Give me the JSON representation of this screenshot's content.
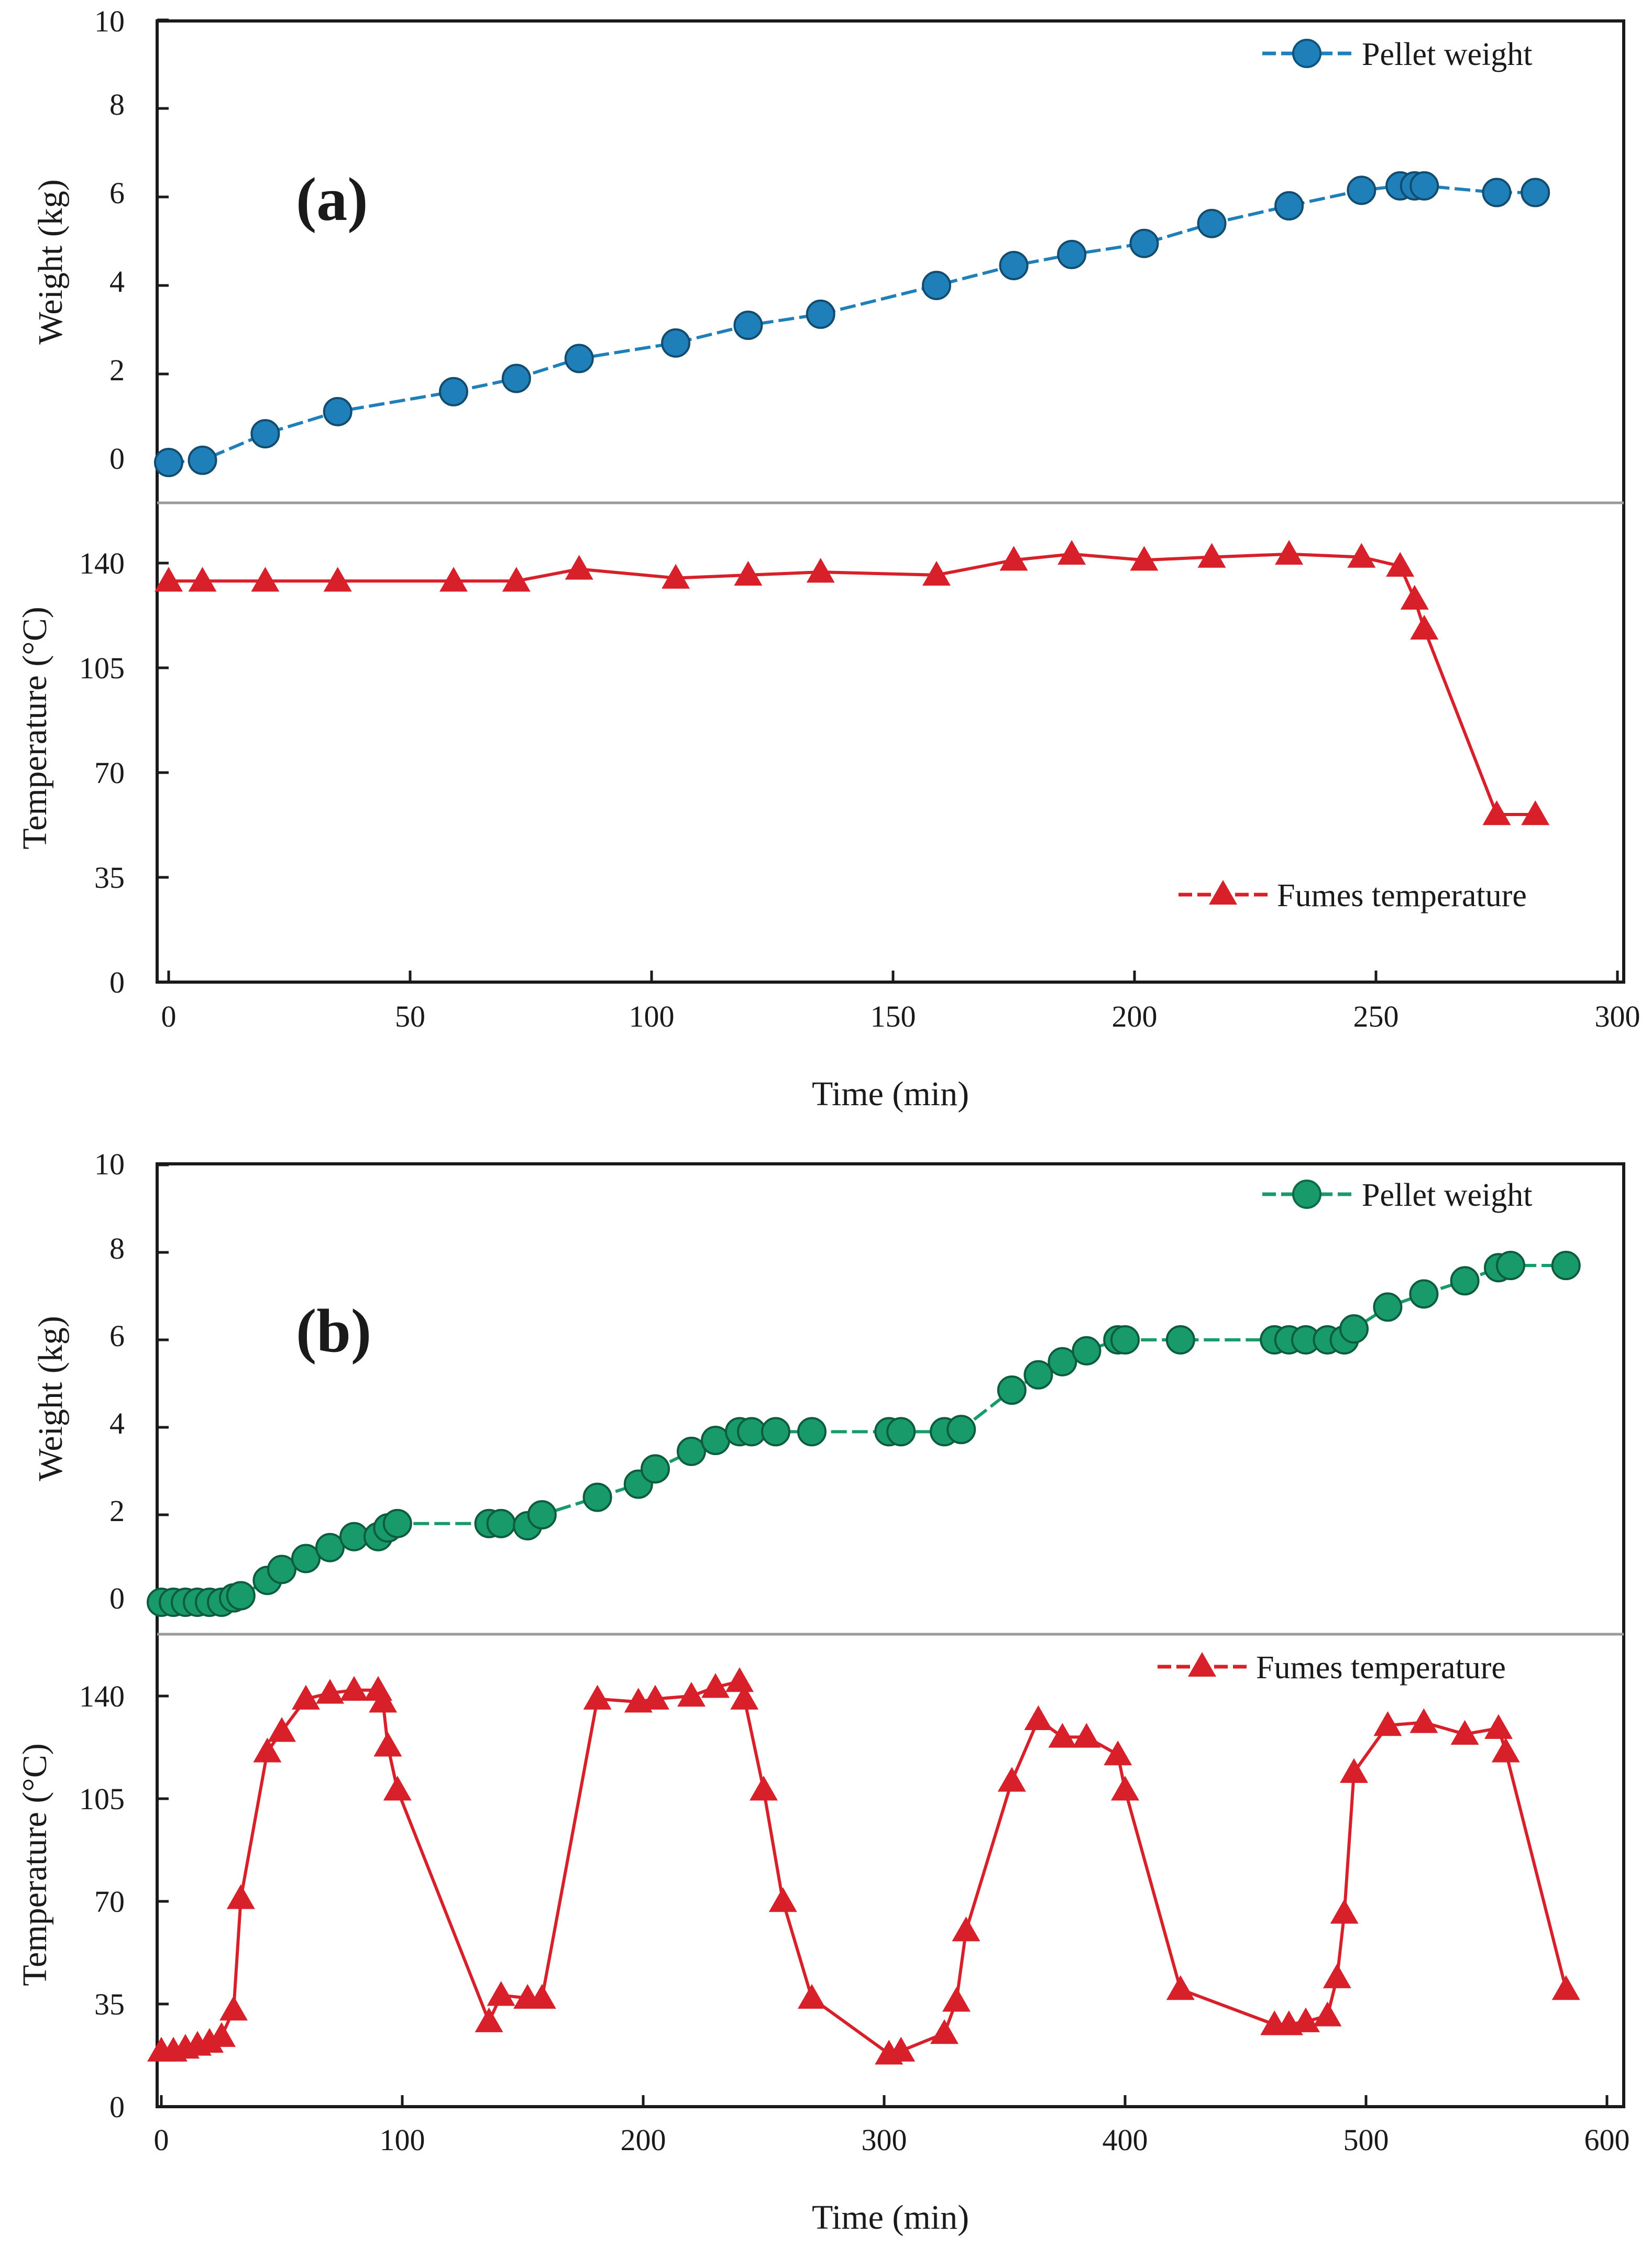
{
  "chart_data": [
    {
      "type": "line",
      "panel_label": "(a)",
      "x_label": "Time (min)",
      "x_range": [
        0,
        300
      ],
      "x_ticks": [
        "0",
        "50",
        "100",
        "150",
        "200",
        "250",
        "300"
      ],
      "top_axis": {
        "label": "Weight (kg)",
        "range": [
          0,
          10
        ],
        "ticks": [
          "0",
          "2",
          "4",
          "6",
          "8",
          "10"
        ]
      },
      "bottom_axis": {
        "label": "Temperature (°C)",
        "range": [
          0,
          140
        ],
        "ticks": [
          "0",
          "35",
          "70",
          "105",
          "140"
        ]
      },
      "series": [
        {
          "name": "Pellet weight",
          "axis": "top",
          "marker": "circle",
          "color": "#1f7fb8",
          "legend_position": "top-right",
          "points": [
            [
              0,
              0.0
            ],
            [
              7,
              0.05
            ],
            [
              20,
              0.65
            ],
            [
              35,
              1.15
            ],
            [
              59,
              1.6
            ],
            [
              72,
              1.9
            ],
            [
              85,
              2.35
            ],
            [
              105,
              2.7
            ],
            [
              120,
              3.1
            ],
            [
              135,
              3.35
            ],
            [
              159,
              4.0
            ],
            [
              175,
              4.45
            ],
            [
              187,
              4.7
            ],
            [
              202,
              4.95
            ],
            [
              216,
              5.4
            ],
            [
              232,
              5.8
            ],
            [
              247,
              6.15
            ],
            [
              255,
              6.25
            ],
            [
              258,
              6.25
            ],
            [
              260,
              6.25
            ],
            [
              275,
              6.1
            ],
            [
              283,
              6.1
            ]
          ]
        },
        {
          "name": "Fumes temperature",
          "axis": "bottom",
          "marker": "triangle",
          "color": "#d8202a",
          "legend_position": "bottom-right",
          "points": [
            [
              0,
              134
            ],
            [
              7,
              134
            ],
            [
              20,
              134
            ],
            [
              35,
              134
            ],
            [
              59,
              134
            ],
            [
              72,
              134
            ],
            [
              85,
              138
            ],
            [
              105,
              135
            ],
            [
              120,
              136
            ],
            [
              135,
              137
            ],
            [
              159,
              136
            ],
            [
              175,
              141
            ],
            [
              187,
              143
            ],
            [
              202,
              141
            ],
            [
              216,
              142
            ],
            [
              232,
              143
            ],
            [
              247,
              142
            ],
            [
              255,
              139
            ],
            [
              258,
              128
            ],
            [
              260,
              118
            ],
            [
              275,
              56
            ],
            [
              283,
              56
            ]
          ]
        }
      ]
    },
    {
      "type": "line",
      "panel_label": "(b)",
      "x_label": "Time (min)",
      "x_range": [
        0,
        600
      ],
      "x_ticks": [
        "0",
        "100",
        "200",
        "300",
        "400",
        "500",
        "600"
      ],
      "top_axis": {
        "label": "Weight (kg)",
        "range": [
          0,
          10
        ],
        "ticks": [
          "0",
          "2",
          "4",
          "6",
          "8",
          "10"
        ]
      },
      "bottom_axis": {
        "label": "Temperature (°C)",
        "range": [
          0,
          140
        ],
        "ticks": [
          "0",
          "35",
          "70",
          "105",
          "140"
        ]
      },
      "series": [
        {
          "name": "Pellet weight",
          "axis": "top",
          "marker": "circle",
          "color": "#189a6a",
          "legend_position": "top-right",
          "points": [
            [
              0,
              0
            ],
            [
              5,
              0
            ],
            [
              10,
              0
            ],
            [
              15,
              0
            ],
            [
              20,
              0
            ],
            [
              25,
              0
            ],
            [
              30,
              0.1
            ],
            [
              33,
              0.15
            ],
            [
              44,
              0.5
            ],
            [
              50,
              0.75
            ],
            [
              60,
              1.0
            ],
            [
              70,
              1.25
            ],
            [
              80,
              1.5
            ],
            [
              90,
              1.5
            ],
            [
              94,
              1.7
            ],
            [
              98,
              1.8
            ],
            [
              136,
              1.8
            ],
            [
              141,
              1.8
            ],
            [
              152,
              1.75
            ],
            [
              158,
              2.0
            ],
            [
              181,
              2.4
            ],
            [
              198,
              2.7
            ],
            [
              205,
              3.05
            ],
            [
              220,
              3.45
            ],
            [
              230,
              3.7
            ],
            [
              240,
              3.9
            ],
            [
              245,
              3.9
            ],
            [
              255,
              3.9
            ],
            [
              270,
              3.9
            ],
            [
              302,
              3.9
            ],
            [
              307,
              3.9
            ],
            [
              325,
              3.9
            ],
            [
              332,
              3.95
            ],
            [
              353,
              4.85
            ],
            [
              364,
              5.2
            ],
            [
              374,
              5.5
            ],
            [
              384,
              5.75
            ],
            [
              397,
              6.0
            ],
            [
              400,
              6.0
            ],
            [
              423,
              6.0
            ],
            [
              462,
              6.0
            ],
            [
              468,
              6.0
            ],
            [
              475,
              6.0
            ],
            [
              484,
              6.0
            ],
            [
              491,
              6.0
            ],
            [
              495,
              6.25
            ],
            [
              509,
              6.75
            ],
            [
              524,
              7.05
            ],
            [
              541,
              7.35
            ],
            [
              555,
              7.65
            ],
            [
              560,
              7.7
            ],
            [
              583,
              7.7
            ]
          ]
        },
        {
          "name": "Fumes temperature",
          "axis": "bottom",
          "marker": "triangle",
          "color": "#d8202a",
          "legend_position": "top-right",
          "points": [
            [
              0,
              19
            ],
            [
              5,
              19
            ],
            [
              10,
              20
            ],
            [
              15,
              21
            ],
            [
              20,
              22
            ],
            [
              25,
              24
            ],
            [
              30,
              33
            ],
            [
              33,
              71
            ],
            [
              44,
              121
            ],
            [
              50,
              128
            ],
            [
              60,
              139
            ],
            [
              70,
              141
            ],
            [
              80,
              142
            ],
            [
              90,
              142
            ],
            [
              92,
              138
            ],
            [
              94,
              123
            ],
            [
              98,
              108
            ],
            [
              136,
              29
            ],
            [
              141,
              38
            ],
            [
              152,
              37
            ],
            [
              158,
              37
            ],
            [
              181,
              139
            ],
            [
              198,
              138
            ],
            [
              205,
              139
            ],
            [
              220,
              140
            ],
            [
              230,
              143
            ],
            [
              240,
              145
            ],
            [
              242,
              139
            ],
            [
              250,
              108
            ],
            [
              258,
              70
            ],
            [
              270,
              37
            ],
            [
              302,
              18
            ],
            [
              307,
              19
            ],
            [
              325,
              25
            ],
            [
              330,
              36
            ],
            [
              334,
              60
            ],
            [
              353,
              111
            ],
            [
              364,
              132
            ],
            [
              374,
              126
            ],
            [
              384,
              126
            ],
            [
              397,
              120
            ],
            [
              400,
              108
            ],
            [
              423,
              40
            ],
            [
              462,
              28
            ],
            [
              468,
              28
            ],
            [
              475,
              29
            ],
            [
              484,
              31
            ],
            [
              488,
              44
            ],
            [
              491,
              66
            ],
            [
              495,
              114
            ],
            [
              509,
              130
            ],
            [
              524,
              131
            ],
            [
              541,
              127
            ],
            [
              555,
              129
            ],
            [
              558,
              121
            ],
            [
              583,
              40
            ]
          ]
        }
      ]
    }
  ]
}
